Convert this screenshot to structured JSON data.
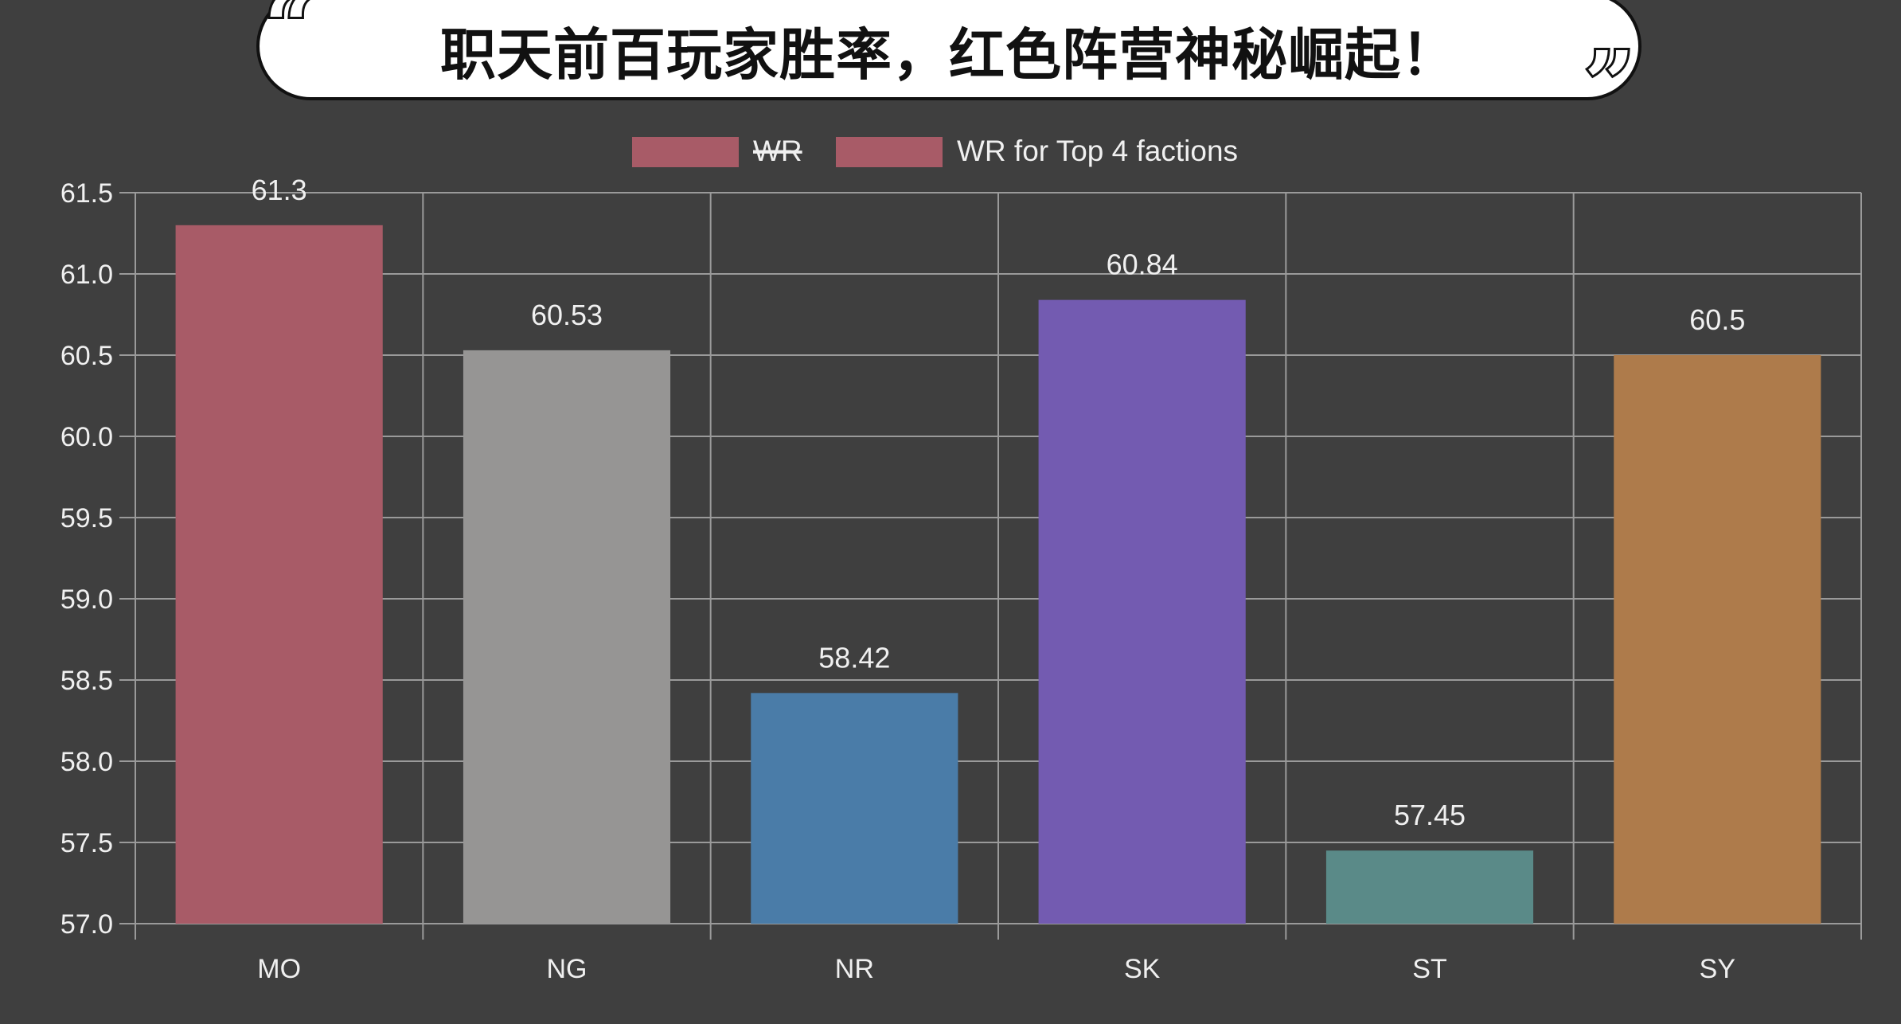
{
  "banner": {
    "title": "职天前百玩家胜率，红色阵营神秘崛起！",
    "open_quote": "“",
    "close_quote": "”"
  },
  "chart_data": {
    "type": "bar",
    "categories": [
      "MO",
      "NG",
      "NR",
      "SK",
      "ST",
      "SY"
    ],
    "series": [
      {
        "name": "WR for Top 4 factions",
        "values": [
          61.3,
          60.53,
          58.42,
          60.84,
          57.45,
          60.5
        ],
        "labels": [
          "61.3",
          "60.53",
          "58.42",
          "60.84",
          "57.45",
          "60.5"
        ],
        "colors": [
          "#a85b67",
          "#969594",
          "#4a7ca8",
          "#735bb1",
          "#5a8a88",
          "#ae7b4b"
        ]
      }
    ],
    "legend": [
      {
        "label": "WR",
        "color": "#a85b67",
        "hidden": true
      },
      {
        "label": "WR for Top 4 factions",
        "color": "#a85b67",
        "hidden": false
      }
    ],
    "legend_position": "top",
    "ylim": [
      57.0,
      61.5
    ],
    "yticks": [
      "61.5",
      "61.0",
      "60.5",
      "60.0",
      "59.5",
      "59.0",
      "58.5",
      "58.0",
      "57.5",
      "57.0"
    ],
    "grid": true,
    "title": "",
    "xlabel": "",
    "ylabel": "",
    "colors": {
      "background": "#3f3f3f",
      "grid": "#9a9a9a",
      "text": "#f0f0f0"
    }
  }
}
